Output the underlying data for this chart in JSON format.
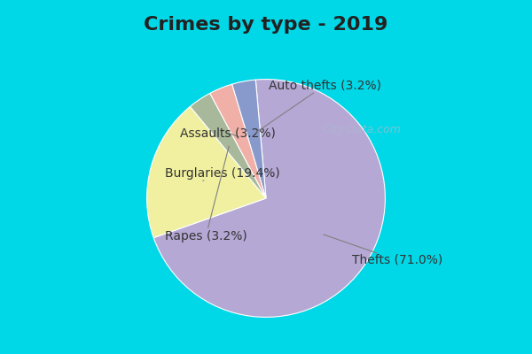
{
  "title": "Crimes by type - 2019",
  "slices": [
    {
      "label": "Thefts",
      "pct": 71.0,
      "color": "#b5a8d5"
    },
    {
      "label": "Burglaries",
      "pct": 19.4,
      "color": "#f0f0a0"
    },
    {
      "label": "Rapes",
      "pct": 3.2,
      "color": "#a8b89a"
    },
    {
      "label": "Assaults",
      "pct": 3.2,
      "color": "#f0b0a8"
    },
    {
      "label": "Auto thefts",
      "pct": 3.2,
      "color": "#8899cc"
    }
  ],
  "background_top": "#00d8e8",
  "background_main": "#d8edd8",
  "title_fontsize": 16,
  "label_fontsize": 10,
  "watermark": "City-Data.com"
}
